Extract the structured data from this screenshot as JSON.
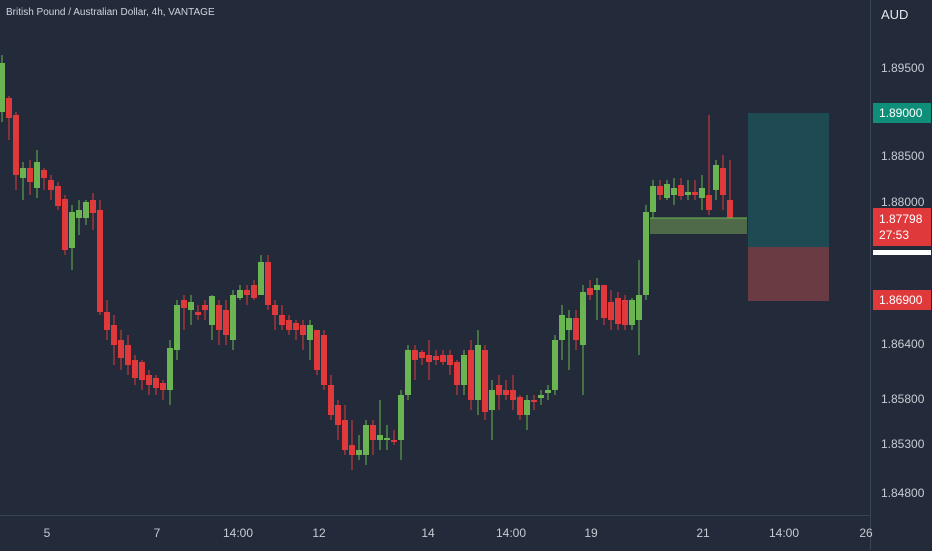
{
  "header": {
    "title": "British Pound / Australian Dollar, 4h, VANTAGE"
  },
  "price_axis": {
    "currency": "AUD",
    "labels": [
      "1.89500",
      "1.88500",
      "1.88000",
      "1.86400",
      "1.85800",
      "1.85300",
      "1.84800"
    ]
  },
  "tags": {
    "take_profit": "1.89000",
    "current_price": "1.87798",
    "countdown": "27:53",
    "stop_loss": "1.86900"
  },
  "time_axis": {
    "labels": [
      "5",
      "7",
      "14:00",
      "12",
      "14",
      "14:00",
      "19",
      "21",
      "14:00",
      "26"
    ]
  },
  "colors": {
    "background": "#232b3a",
    "bull": "#6ab552",
    "bear": "#e0393c",
    "profit_zone": "#1f4d54",
    "loss_zone": "#703c44",
    "entry_zone": "#4e6a48"
  },
  "chart_data": {
    "type": "candlestick",
    "title": "British Pound / Australian Dollar, 4h, VANTAGE",
    "ylabel": "AUD",
    "ylim": [
      1.842,
      1.9
    ]
  }
}
